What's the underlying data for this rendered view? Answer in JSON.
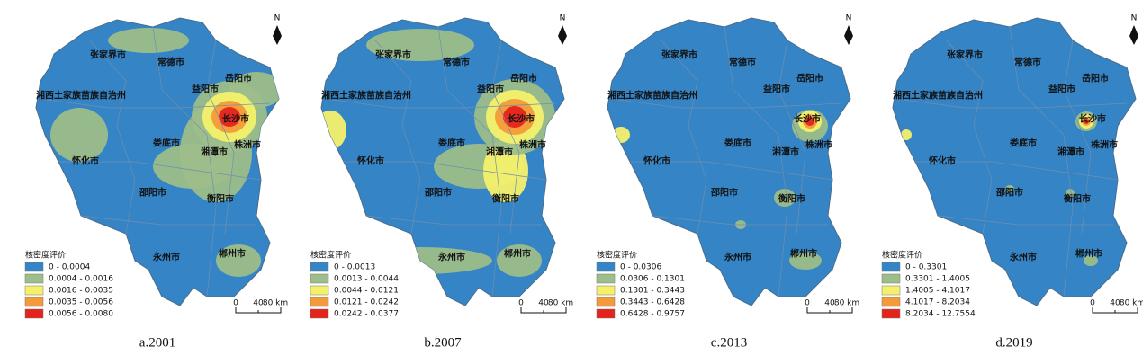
{
  "figure": {
    "legend_title": "核密度评价",
    "north": "N",
    "scale_labels": [
      "0",
      "40",
      "80 km"
    ],
    "legend_colors": [
      "#3584c6",
      "#9dbd8a",
      "#f4f06c",
      "#f49a3a",
      "#e5231d"
    ],
    "cities": [
      "张家界市",
      "常德市",
      "岳阳市",
      "益阳市",
      "湘西土家族苗族自治州",
      "长沙市",
      "娄底市",
      "湘潭市",
      "株洲市",
      "怀化市",
      "邵阳市",
      "衡阳市",
      "永州市",
      "郴州市"
    ],
    "panels": [
      {
        "caption": "a.2001",
        "legend": [
          "0 - 0.0004",
          "0.0004 - 0.0016",
          "0.0016 - 0.0035",
          "0.0035 - 0.0056",
          "0.0056 - 0.0080"
        ]
      },
      {
        "caption": "b.2007",
        "legend": [
          "0 - 0.0013",
          "0.0013 - 0.0044",
          "0.0044 - 0.0121",
          "0.0121 - 0.0242",
          "0.0242 - 0.0377"
        ]
      },
      {
        "caption": "c.2013",
        "legend": [
          "0 - 0.0306",
          "0.0306 - 0.1301",
          "0.1301 - 0.3443",
          "0.3443 - 0.6428",
          "0.6428 - 0.9757"
        ]
      },
      {
        "caption": "d.2019",
        "legend": [
          "0 - 0.3301",
          "0.3301 - 1.4005",
          "1.4005 - 4.1017",
          "4.1017 - 8.2034",
          "8.2034 - 12.7554"
        ]
      }
    ]
  }
}
